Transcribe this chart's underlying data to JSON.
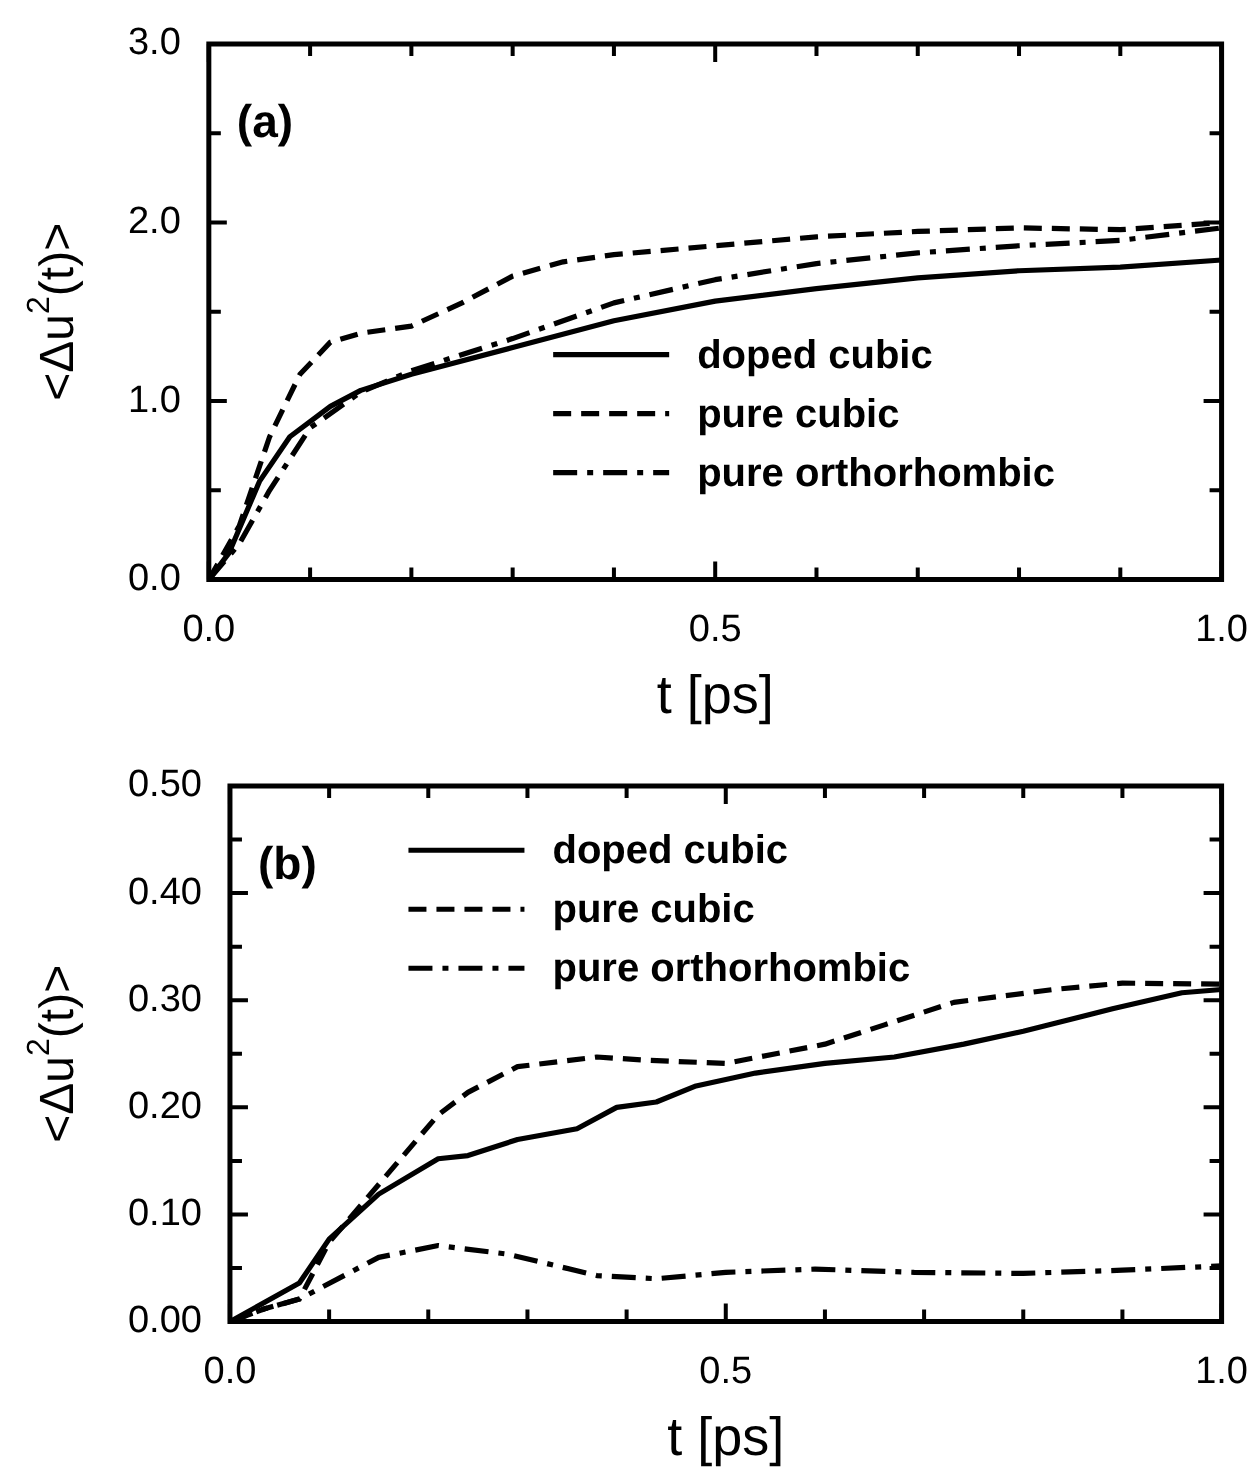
{
  "chart_data": [
    {
      "type": "line",
      "xlabel": "t [ps]",
      "ylabel": "<Δu$^{2}$(t)>",
      "annotations": [
        "(a)"
      ],
      "xlim": [
        0,
        1
      ],
      "xticks": [
        {
          "value": 0,
          "label": "0.0"
        },
        {
          "value": 0.1,
          "label": null
        },
        {
          "value": 0.2,
          "label": null
        },
        {
          "value": 0.3,
          "label": null
        },
        {
          "value": 0.4,
          "label": null
        },
        {
          "value": 0.5,
          "label": "0.5"
        },
        {
          "value": 0.6,
          "label": null
        },
        {
          "value": 0.7,
          "label": null
        },
        {
          "value": 0.8,
          "label": null
        },
        {
          "value": 0.9,
          "label": null
        },
        {
          "value": 1,
          "label": "1.0"
        }
      ],
      "ylim": [
        0,
        3
      ],
      "yticks": [
        {
          "value": 0,
          "label": "0.0"
        },
        {
          "value": 0.5,
          "label": null
        },
        {
          "value": 1,
          "label": "1.0"
        },
        {
          "value": 1.5,
          "label": null
        },
        {
          "value": 2,
          "label": "2.0"
        },
        {
          "value": 2.5,
          "label": null
        },
        {
          "value": 3,
          "label": "3.0"
        }
      ],
      "legend": "center right",
      "grid": false,
      "marker": "none",
      "series": [
        {
          "name": "doped cubic",
          "color": "#000000",
          "line_style": "solid",
          "x": [
            0,
            0.02,
            0.05,
            0.08,
            0.12,
            0.15,
            0.2,
            0.3,
            0.4,
            0.5,
            0.6,
            0.7,
            0.8,
            0.9,
            1.0
          ],
          "values": [
            0,
            0.15,
            0.55,
            0.8,
            0.97,
            1.06,
            1.15,
            1.3,
            1.45,
            1.56,
            1.63,
            1.69,
            1.73,
            1.75,
            1.79
          ]
        },
        {
          "name": "pure cubic",
          "color": "#000000",
          "line_style": "dashed",
          "x": [
            0,
            0.03,
            0.06,
            0.09,
            0.12,
            0.15,
            0.2,
            0.25,
            0.3,
            0.35,
            0.4,
            0.5,
            0.6,
            0.7,
            0.8,
            0.9,
            1.0
          ],
          "values": [
            0,
            0.3,
            0.8,
            1.15,
            1.33,
            1.38,
            1.42,
            1.55,
            1.7,
            1.78,
            1.82,
            1.87,
            1.92,
            1.95,
            1.97,
            1.96,
            2.0
          ]
        },
        {
          "name": "pure orthorhombic",
          "color": "#000000",
          "line_style": "dashdot",
          "x": [
            0,
            0.03,
            0.06,
            0.1,
            0.15,
            0.2,
            0.3,
            0.4,
            0.5,
            0.6,
            0.7,
            0.8,
            0.9,
            1.0
          ],
          "values": [
            0,
            0.2,
            0.5,
            0.85,
            1.05,
            1.17,
            1.35,
            1.55,
            1.68,
            1.77,
            1.83,
            1.87,
            1.9,
            1.97
          ]
        }
      ]
    },
    {
      "type": "line",
      "xlabel": "t [ps]",
      "ylabel": "<Δu$^{2}$(t)>",
      "annotations": [
        "(b)"
      ],
      "xlim": [
        0,
        1
      ],
      "xticks": [
        {
          "value": 0,
          "label": "0.0"
        },
        {
          "value": 0.1,
          "label": null
        },
        {
          "value": 0.2,
          "label": null
        },
        {
          "value": 0.3,
          "label": null
        },
        {
          "value": 0.4,
          "label": null
        },
        {
          "value": 0.5,
          "label": "0.5"
        },
        {
          "value": 0.6,
          "label": null
        },
        {
          "value": 0.7,
          "label": null
        },
        {
          "value": 0.8,
          "label": null
        },
        {
          "value": 0.9,
          "label": null
        },
        {
          "value": 1,
          "label": "1.0"
        }
      ],
      "ylim": [
        0,
        0.5
      ],
      "yticks": [
        {
          "value": 0,
          "label": "0.00"
        },
        {
          "value": 0.05,
          "label": null
        },
        {
          "value": 0.1,
          "label": "0.10"
        },
        {
          "value": 0.15,
          "label": null
        },
        {
          "value": 0.2,
          "label": "0.20"
        },
        {
          "value": 0.25,
          "label": null
        },
        {
          "value": 0.3,
          "label": "0.30"
        },
        {
          "value": 0.35,
          "label": null
        },
        {
          "value": 0.4,
          "label": "0.40"
        },
        {
          "value": 0.45,
          "label": null
        },
        {
          "value": 0.5,
          "label": "0.50"
        }
      ],
      "legend": "top left",
      "grid": false,
      "marker": "none",
      "series": [
        {
          "name": "doped cubic",
          "color": "#000000",
          "line_style": "solid",
          "x": [
            0,
            0.07,
            0.1,
            0.15,
            0.21,
            0.24,
            0.29,
            0.35,
            0.39,
            0.43,
            0.47,
            0.53,
            0.6,
            0.67,
            0.74,
            0.8,
            0.89,
            0.96,
            1.0
          ],
          "values": [
            0,
            0.036,
            0.077,
            0.119,
            0.152,
            0.155,
            0.17,
            0.18,
            0.2,
            0.205,
            0.22,
            0.232,
            0.241,
            0.247,
            0.259,
            0.271,
            0.292,
            0.307,
            0.31
          ]
        },
        {
          "name": "pure cubic",
          "color": "#000000",
          "line_style": "dashed",
          "x": [
            0,
            0.035,
            0.07,
            0.1,
            0.15,
            0.21,
            0.24,
            0.29,
            0.37,
            0.42,
            0.5,
            0.6,
            0.66,
            0.73,
            0.83,
            0.9,
            1.0
          ],
          "values": [
            0,
            0.012,
            0.021,
            0.074,
            0.128,
            0.193,
            0.214,
            0.238,
            0.247,
            0.244,
            0.241,
            0.259,
            0.277,
            0.298,
            0.31,
            0.316,
            0.315
          ]
        },
        {
          "name": "pure orthorhombic",
          "color": "#000000",
          "line_style": "dashdot",
          "x": [
            0,
            0.035,
            0.07,
            0.15,
            0.21,
            0.28,
            0.37,
            0.43,
            0.5,
            0.59,
            0.69,
            0.8,
            0.9,
            1.0
          ],
          "values": [
            0,
            0.012,
            0.021,
            0.06,
            0.071,
            0.063,
            0.043,
            0.04,
            0.046,
            0.049,
            0.046,
            0.045,
            0.048,
            0.052
          ]
        }
      ]
    }
  ]
}
